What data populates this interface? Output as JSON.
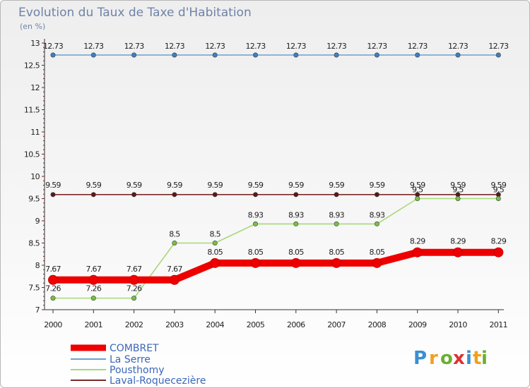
{
  "chart_data": {
    "type": "line",
    "title": "Evolution du Taux de Taxe d'Habitation",
    "subtitle": "(en %)",
    "categories": [
      "2000",
      "2001",
      "2002",
      "2003",
      "2004",
      "2005",
      "2006",
      "2007",
      "2008",
      "2009",
      "2010",
      "2011"
    ],
    "y_ticks": [
      "7",
      "7.5",
      "8",
      "8.5",
      "9",
      "9.5",
      "10",
      "10.5",
      "11",
      "11.5",
      "12",
      "12.5",
      "13"
    ],
    "ylim": [
      7,
      13
    ],
    "grid": false,
    "legend_position": "bottom-left",
    "series": [
      {
        "name": "La Serre",
        "color": "#6aa0d0",
        "marker": "#3f7fbf",
        "values": [
          12.73,
          12.73,
          12.73,
          12.73,
          12.73,
          12.73,
          12.73,
          12.73,
          12.73,
          12.73,
          12.73,
          12.73
        ],
        "labels": [
          "12.73",
          "12.73",
          "12.73",
          "12.73",
          "12.73",
          "12.73",
          "12.73",
          "12.73",
          "12.73",
          "12.73",
          "12.73",
          "12.73"
        ]
      },
      {
        "name": "Laval-Roquecezière",
        "color": "#7a2a2a",
        "marker": "#5a1818",
        "values": [
          9.59,
          9.59,
          9.59,
          9.59,
          9.59,
          9.59,
          9.59,
          9.59,
          9.59,
          9.59,
          9.59,
          9.59
        ],
        "labels": [
          "9.59",
          "9.59",
          "9.59",
          "9.59",
          "9.59",
          "9.59",
          "9.59",
          "9.59",
          "9.59",
          "9.59",
          "9.59",
          "9.59"
        ]
      },
      {
        "name": "Pousthomy",
        "color": "#a8d878",
        "marker": "#78c040",
        "values": [
          7.26,
          7.26,
          7.26,
          8.5,
          8.5,
          8.93,
          8.93,
          8.93,
          8.93,
          9.5,
          9.5,
          9.5
        ],
        "labels": [
          "7.26",
          "7.26",
          "7.26",
          "8.5",
          "8.5",
          "8.93",
          "8.93",
          "8.93",
          "8.93",
          "9.5",
          "9.5",
          "9.5"
        ]
      },
      {
        "name": "COMBRET",
        "color": "#ee0000",
        "marker": "#ee0000",
        "values": [
          7.67,
          7.67,
          7.67,
          7.67,
          8.05,
          8.05,
          8.05,
          8.05,
          8.05,
          8.29,
          8.29,
          8.29
        ],
        "labels": [
          "7.67",
          "7.67",
          "7.67",
          "7.67",
          "8.05",
          "8.05",
          "8.05",
          "8.05",
          "8.05",
          "8.29",
          "8.29",
          "8.29"
        ]
      }
    ],
    "legend": [
      "COMBRET",
      "La Serre",
      "Pousthomy",
      "Laval-Roquecezière"
    ],
    "logo": {
      "letters": [
        "P",
        "r",
        "o",
        "x",
        "i",
        "t",
        "i"
      ],
      "colors": [
        "#3a8fd0",
        "#f0a020",
        "#6ab030",
        "#e03030",
        "#3a8fd0",
        "#f0a020",
        "#6ab030"
      ]
    }
  }
}
